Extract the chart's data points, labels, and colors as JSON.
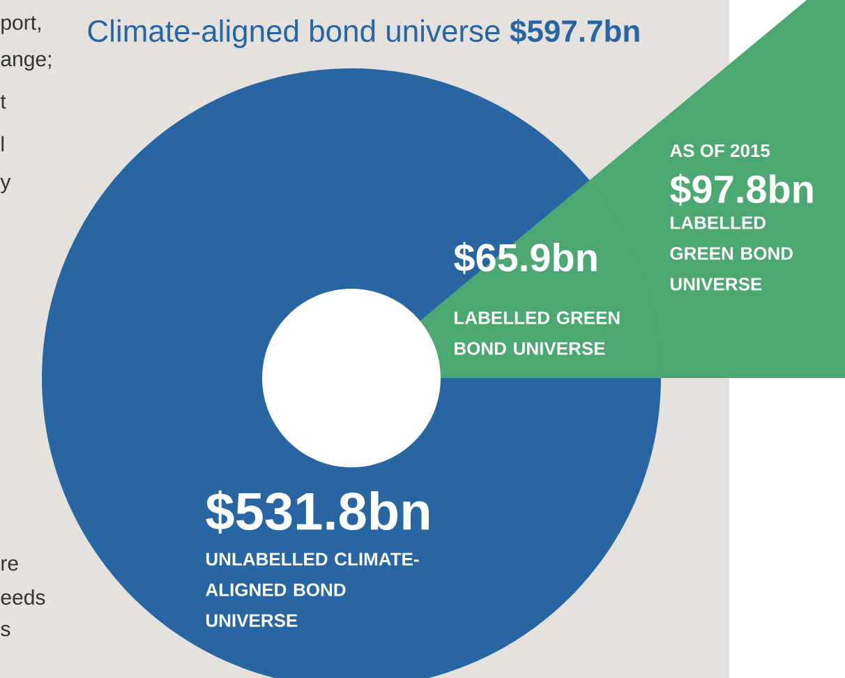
{
  "chart_data": {
    "type": "donut",
    "title": "Climate-aligned bond universe **$597.7bn**",
    "categories": [
      "UNLABELLED CLIMATE-ALIGNED BOND UNIVERSE",
      "LABELLED GREEN BOND UNIVERSE"
    ],
    "values": [
      531.8,
      65.9
    ],
    "colors": [
      "#2866a3",
      "#4aa870"
    ],
    "value_labels": [
      "$531.8bn",
      "$65.9bn"
    ],
    "annotations": [
      "AS OF 2015",
      "$97.8bn",
      "LABELLED GREEN BOND UNIVERSE",
      "port,",
      "ange;",
      "t",
      "l",
      "y",
      "re",
      "eeds",
      "s"
    ]
  }
}
